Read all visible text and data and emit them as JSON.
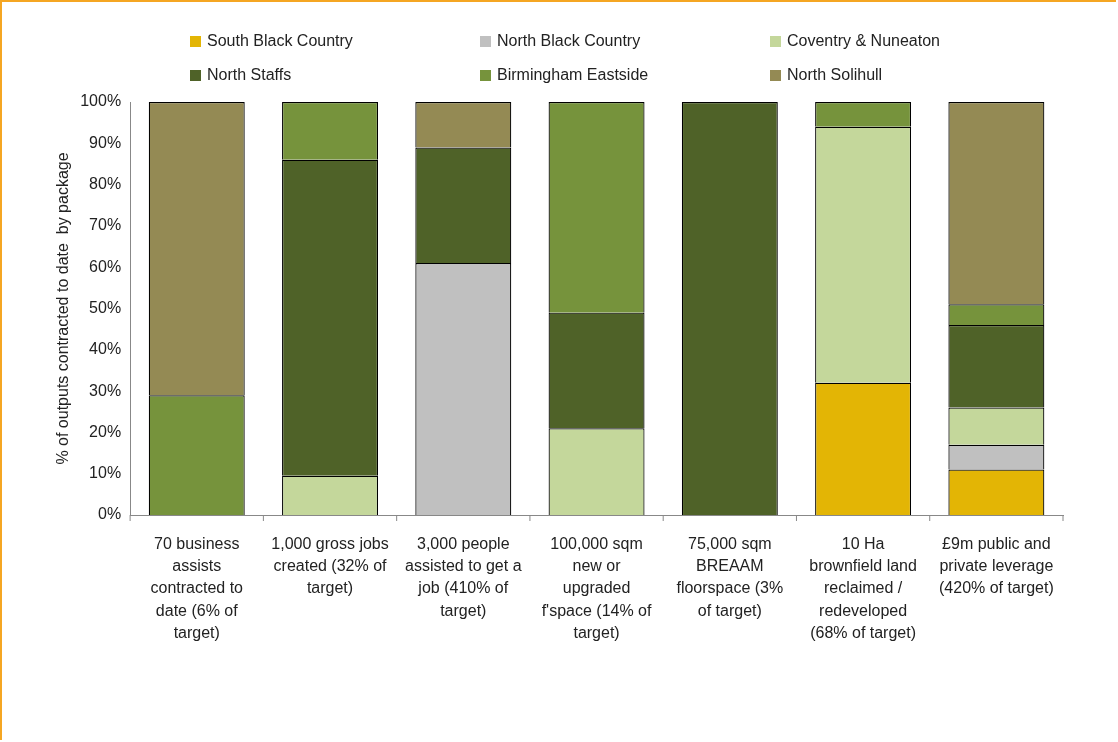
{
  "chart_data": {
    "type": "bar",
    "stacked": true,
    "ylabel": "% of outputs contracted to date  by package",
    "categories": [
      "70 business assists contracted to date (6% of target)",
      "1,000 gross jobs created (32% of target)",
      "3,000 people assisted to get a job (410% of target)",
      "100,000 sqm new or upgraded f'space (14% of target)",
      "75,000 sqm BREAAM floorspace (3% of target)",
      "10 Ha brownfield land reclaimed / redeveloped (68% of target)",
      "£9m public and private leverage (420% of target)"
    ],
    "series": [
      {
        "name": "South Black Country",
        "color": "#e3b505",
        "values": [
          0,
          0,
          0,
          0,
          0,
          32,
          11
        ]
      },
      {
        "name": "North Black Country",
        "color": "#c0c0c0",
        "values": [
          0,
          0,
          61,
          0,
          0,
          0,
          6
        ]
      },
      {
        "name": "Coventry & Nuneaton",
        "color": "#c4d79b",
        "values": [
          0,
          9.5,
          0,
          21,
          0,
          62,
          9
        ]
      },
      {
        "name": "North Staffs",
        "color": "#4f6228",
        "values": [
          0,
          76.5,
          28,
          28,
          100,
          0,
          20
        ]
      },
      {
        "name": "Birmingham Eastside",
        "color": "#76933c",
        "values": [
          29,
          14,
          0,
          51,
          0,
          6,
          5
        ]
      },
      {
        "name": "North Solihull",
        "color": "#948a54",
        "values": [
          71,
          0,
          11,
          0,
          0,
          0,
          49
        ]
      }
    ],
    "ylim": [
      0,
      100
    ],
    "yticks": [
      {
        "value": 0,
        "label": "0%"
      },
      {
        "value": 10,
        "label": "10%"
      },
      {
        "value": 20,
        "label": "20%"
      },
      {
        "value": 30,
        "label": "30%"
      },
      {
        "value": 40,
        "label": "40%"
      },
      {
        "value": 50,
        "label": "50%"
      },
      {
        "value": 60,
        "label": "60%"
      },
      {
        "value": 70,
        "label": "70%"
      },
      {
        "value": 80,
        "label": "80%"
      },
      {
        "value": 90,
        "label": "90%"
      },
      {
        "value": 100,
        "label": "100%"
      }
    ],
    "grid": false,
    "legend": "top"
  }
}
